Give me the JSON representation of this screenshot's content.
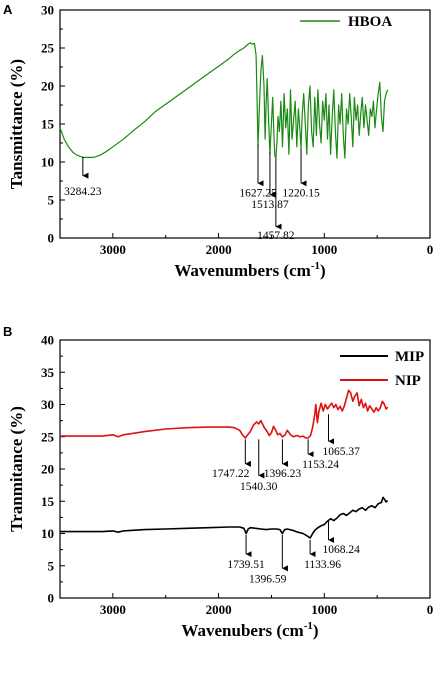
{
  "chart_data": [
    {
      "panel": "A",
      "type": "line",
      "xlabel": "Wavenumbers (cm",
      "xlabel_sup": "-1",
      "xlabel_tail": ")",
      "ylabel": "Tansmittance (%)",
      "xlim": [
        3500,
        0
      ],
      "ylim": [
        0,
        30
      ],
      "xticks": [
        3000,
        2000,
        1000,
        0
      ],
      "yticks": [
        0,
        5,
        10,
        15,
        20,
        25,
        30
      ],
      "legend": "top-right",
      "series": [
        {
          "name": "HBOA",
          "color": "#1a8a12",
          "x": [
            3500,
            3460,
            3420,
            3380,
            3340,
            3300,
            3284,
            3260,
            3220,
            3180,
            3120,
            3060,
            3000,
            2900,
            2800,
            2700,
            2600,
            2500,
            2400,
            2300,
            2200,
            2100,
            2000,
            1950,
            1900,
            1850,
            1800,
            1760,
            1730,
            1700,
            1680,
            1660,
            1645,
            1636,
            1627,
            1615,
            1600,
            1585,
            1570,
            1560,
            1550,
            1540,
            1528,
            1514,
            1500,
            1488,
            1478,
            1468,
            1458,
            1448,
            1438,
            1425,
            1410,
            1395,
            1380,
            1365,
            1350,
            1335,
            1320,
            1305,
            1290,
            1275,
            1260,
            1245,
            1230,
            1220,
            1210,
            1195,
            1180,
            1165,
            1150,
            1135,
            1120,
            1105,
            1090,
            1075,
            1060,
            1045,
            1030,
            1015,
            1000,
            985,
            970,
            955,
            940,
            925,
            910,
            895,
            880,
            865,
            850,
            835,
            820,
            805,
            790,
            775,
            760,
            745,
            730,
            715,
            700,
            685,
            670,
            655,
            640,
            625,
            610,
            595,
            580,
            565,
            550,
            535,
            520,
            505,
            490,
            475,
            460,
            445,
            430,
            415,
            400
          ],
          "y": [
            14.5,
            13.0,
            12.0,
            11.3,
            10.9,
            10.7,
            10.6,
            10.6,
            10.6,
            10.6,
            10.9,
            11.4,
            12.0,
            13.0,
            14.2,
            15.3,
            16.6,
            17.6,
            18.6,
            19.6,
            20.6,
            21.6,
            22.6,
            23.1,
            23.6,
            24.2,
            24.7,
            25.0,
            25.4,
            25.7,
            25.5,
            25.6,
            24.0,
            18.0,
            12.0,
            17.0,
            22.0,
            24.0,
            20.0,
            13.0,
            17.5,
            21.0,
            16.0,
            11.0,
            15.0,
            18.5,
            14.0,
            10.8,
            10.5,
            12.5,
            16.0,
            14.0,
            18.0,
            12.0,
            19.0,
            14.5,
            17.0,
            11.0,
            19.5,
            13.0,
            15.5,
            18.0,
            12.0,
            17.0,
            14.0,
            11.8,
            16.0,
            19.0,
            15.0,
            11.0,
            17.5,
            20.0,
            14.0,
            12.0,
            18.5,
            13.5,
            19.5,
            15.0,
            12.5,
            18.0,
            15.5,
            19.0,
            13.0,
            17.5,
            11.0,
            16.0,
            19.5,
            14.0,
            10.5,
            17.5,
            15.0,
            19.0,
            13.5,
            10.5,
            17.0,
            15.0,
            19.0,
            16.0,
            12.0,
            18.5,
            15.5,
            17.5,
            13.5,
            16.5,
            18.5,
            14.5,
            17.5,
            15.5,
            13.5,
            17.0,
            16.0,
            18.0,
            14.5,
            17.0,
            19.0,
            20.5,
            16.0,
            14.0,
            18.0,
            19.0,
            19.5
          ]
        }
      ],
      "annotations": [
        {
          "label": "3284.23",
          "x": 3284,
          "arrow_top": 10.7,
          "arrow_bottom": 8.2,
          "text_y": 6.2,
          "text_anchor": "middle"
        },
        {
          "label": "1627.25",
          "x": 1627,
          "arrow_top": 12.3,
          "arrow_bottom": 7.2,
          "text_y": 6.0,
          "text_anchor": "middle"
        },
        {
          "label": "1513.87",
          "x": 1514,
          "arrow_top": 11.3,
          "arrow_bottom": 5.7,
          "text_y": 4.5,
          "text_anchor": "middle"
        },
        {
          "label": "1457.82",
          "x": 1458,
          "arrow_top": 10.5,
          "arrow_bottom": 1.5,
          "text_y": 0.4,
          "text_anchor": "middle"
        },
        {
          "label": "1220.15",
          "x": 1220,
          "arrow_top": 11.8,
          "arrow_bottom": 7.2,
          "text_y": 6.0,
          "text_anchor": "middle"
        }
      ]
    },
    {
      "panel": "B",
      "type": "line",
      "xlabel": "Wavenubers (cm",
      "xlabel_sup": "-1",
      "xlabel_tail": ")",
      "ylabel": "Tranmitance (%)",
      "xlim": [
        3500,
        0
      ],
      "ylim": [
        0,
        40
      ],
      "xticks": [
        3000,
        2000,
        1000,
        0
      ],
      "yticks": [
        0,
        5,
        10,
        15,
        20,
        25,
        30,
        35,
        40
      ],
      "legend": "top-right",
      "series": [
        {
          "name": "MIP",
          "color": "#000000",
          "x": [
            3500,
            3300,
            3100,
            3000,
            2950,
            2900,
            2700,
            2500,
            2300,
            2100,
            1900,
            1800,
            1760,
            1740,
            1720,
            1700,
            1650,
            1600,
            1550,
            1500,
            1450,
            1420,
            1397,
            1375,
            1350,
            1300,
            1250,
            1200,
            1160,
            1134,
            1110,
            1090,
            1068,
            1050,
            1030,
            1000,
            970,
            940,
            910,
            880,
            850,
            820,
            790,
            760,
            730,
            700,
            670,
            640,
            610,
            580,
            550,
            520,
            490,
            460,
            445,
            430,
            415,
            400
          ],
          "y": [
            10.3,
            10.3,
            10.3,
            10.4,
            10.2,
            10.4,
            10.6,
            10.7,
            10.8,
            10.9,
            11.0,
            11.0,
            10.8,
            10.0,
            10.7,
            10.9,
            10.8,
            10.7,
            10.6,
            10.7,
            10.7,
            10.6,
            10.0,
            10.6,
            10.7,
            10.5,
            10.2,
            10.0,
            9.6,
            9.3,
            10.0,
            10.5,
            10.8,
            11.0,
            11.2,
            11.4,
            11.9,
            12.3,
            12.0,
            12.4,
            12.9,
            13.1,
            12.8,
            13.2,
            13.6,
            13.4,
            13.8,
            14.0,
            13.6,
            14.1,
            14.3,
            14.0,
            14.6,
            14.8,
            15.6,
            15.3,
            14.9,
            15.1
          ]
        },
        {
          "name": "NIP",
          "color": "#dd1111",
          "x": [
            3500,
            3300,
            3100,
            3000,
            2950,
            2900,
            2700,
            2500,
            2300,
            2100,
            1900,
            1850,
            1800,
            1775,
            1747,
            1720,
            1700,
            1670,
            1640,
            1620,
            1600,
            1570,
            1540,
            1520,
            1500,
            1480,
            1460,
            1440,
            1420,
            1396,
            1370,
            1350,
            1320,
            1290,
            1260,
            1230,
            1200,
            1175,
            1153,
            1130,
            1110,
            1090,
            1080,
            1065,
            1050,
            1030,
            1010,
            990,
            970,
            950,
            930,
            910,
            890,
            870,
            850,
            830,
            810,
            790,
            770,
            750,
            730,
            710,
            690,
            670,
            650,
            630,
            610,
            590,
            570,
            550,
            530,
            510,
            490,
            470,
            450,
            430,
            415,
            400
          ],
          "y": [
            25.1,
            25.1,
            25.1,
            25.3,
            25.0,
            25.3,
            25.8,
            26.2,
            26.4,
            26.5,
            26.5,
            26.4,
            26.0,
            25.3,
            24.8,
            25.4,
            25.8,
            26.8,
            27.3,
            27.0,
            27.5,
            26.5,
            25.8,
            25.2,
            25.6,
            26.6,
            26.0,
            25.3,
            25.5,
            25.0,
            25.3,
            26.0,
            25.3,
            25.0,
            25.2,
            25.0,
            25.1,
            24.8,
            24.8,
            25.2,
            26.5,
            28.5,
            30.0,
            27.2,
            29.0,
            30.2,
            29.0,
            30.0,
            29.3,
            29.8,
            30.2,
            29.5,
            30.0,
            29.2,
            29.7,
            29.0,
            29.8,
            31.0,
            32.2,
            31.8,
            30.5,
            31.3,
            31.8,
            29.8,
            30.8,
            29.5,
            30.2,
            29.0,
            29.8,
            29.3,
            28.8,
            29.5,
            29.0,
            29.5,
            30.5,
            30.0,
            29.3,
            29.6
          ]
        }
      ],
      "annotations": [
        {
          "label": "1747.22",
          "x": 1747,
          "arrow_top": 24.6,
          "arrow_bottom": 20.8,
          "text_y": 19.4,
          "text_anchor": "end"
        },
        {
          "label": "1540.30",
          "x": 1620,
          "arrow_top": 24.6,
          "arrow_bottom": 19.0,
          "text_y": 17.4,
          "text_anchor": "middle"
        },
        {
          "label": "1396.23",
          "x": 1396,
          "arrow_top": 24.6,
          "arrow_bottom": 20.8,
          "text_y": 19.4,
          "text_anchor": "middle"
        },
        {
          "label": "1153.24",
          "x": 1153,
          "arrow_top": 24.6,
          "arrow_bottom": 22.3,
          "text_y": 20.8,
          "text_anchor": "start"
        },
        {
          "label": "1065.37",
          "x": 960,
          "arrow_top": 28.5,
          "arrow_bottom": 24.3,
          "text_y": 22.8,
          "text_anchor": "start"
        },
        {
          "label": "1739.51",
          "x": 1740,
          "arrow_top": 9.8,
          "arrow_bottom": 6.8,
          "text_y": 5.3,
          "text_anchor": "middle"
        },
        {
          "label": "1396.59",
          "x": 1397,
          "arrow_top": 9.8,
          "arrow_bottom": 4.6,
          "text_y": 3.0,
          "text_anchor": "end"
        },
        {
          "label": "1133.96",
          "x": 1134,
          "arrow_top": 9.0,
          "arrow_bottom": 6.8,
          "text_y": 5.3,
          "text_anchor": "start"
        },
        {
          "label": "1068.24",
          "x": 960,
          "arrow_top": 12.0,
          "arrow_bottom": 9.0,
          "text_y": 7.6,
          "text_anchor": "start"
        }
      ]
    }
  ]
}
